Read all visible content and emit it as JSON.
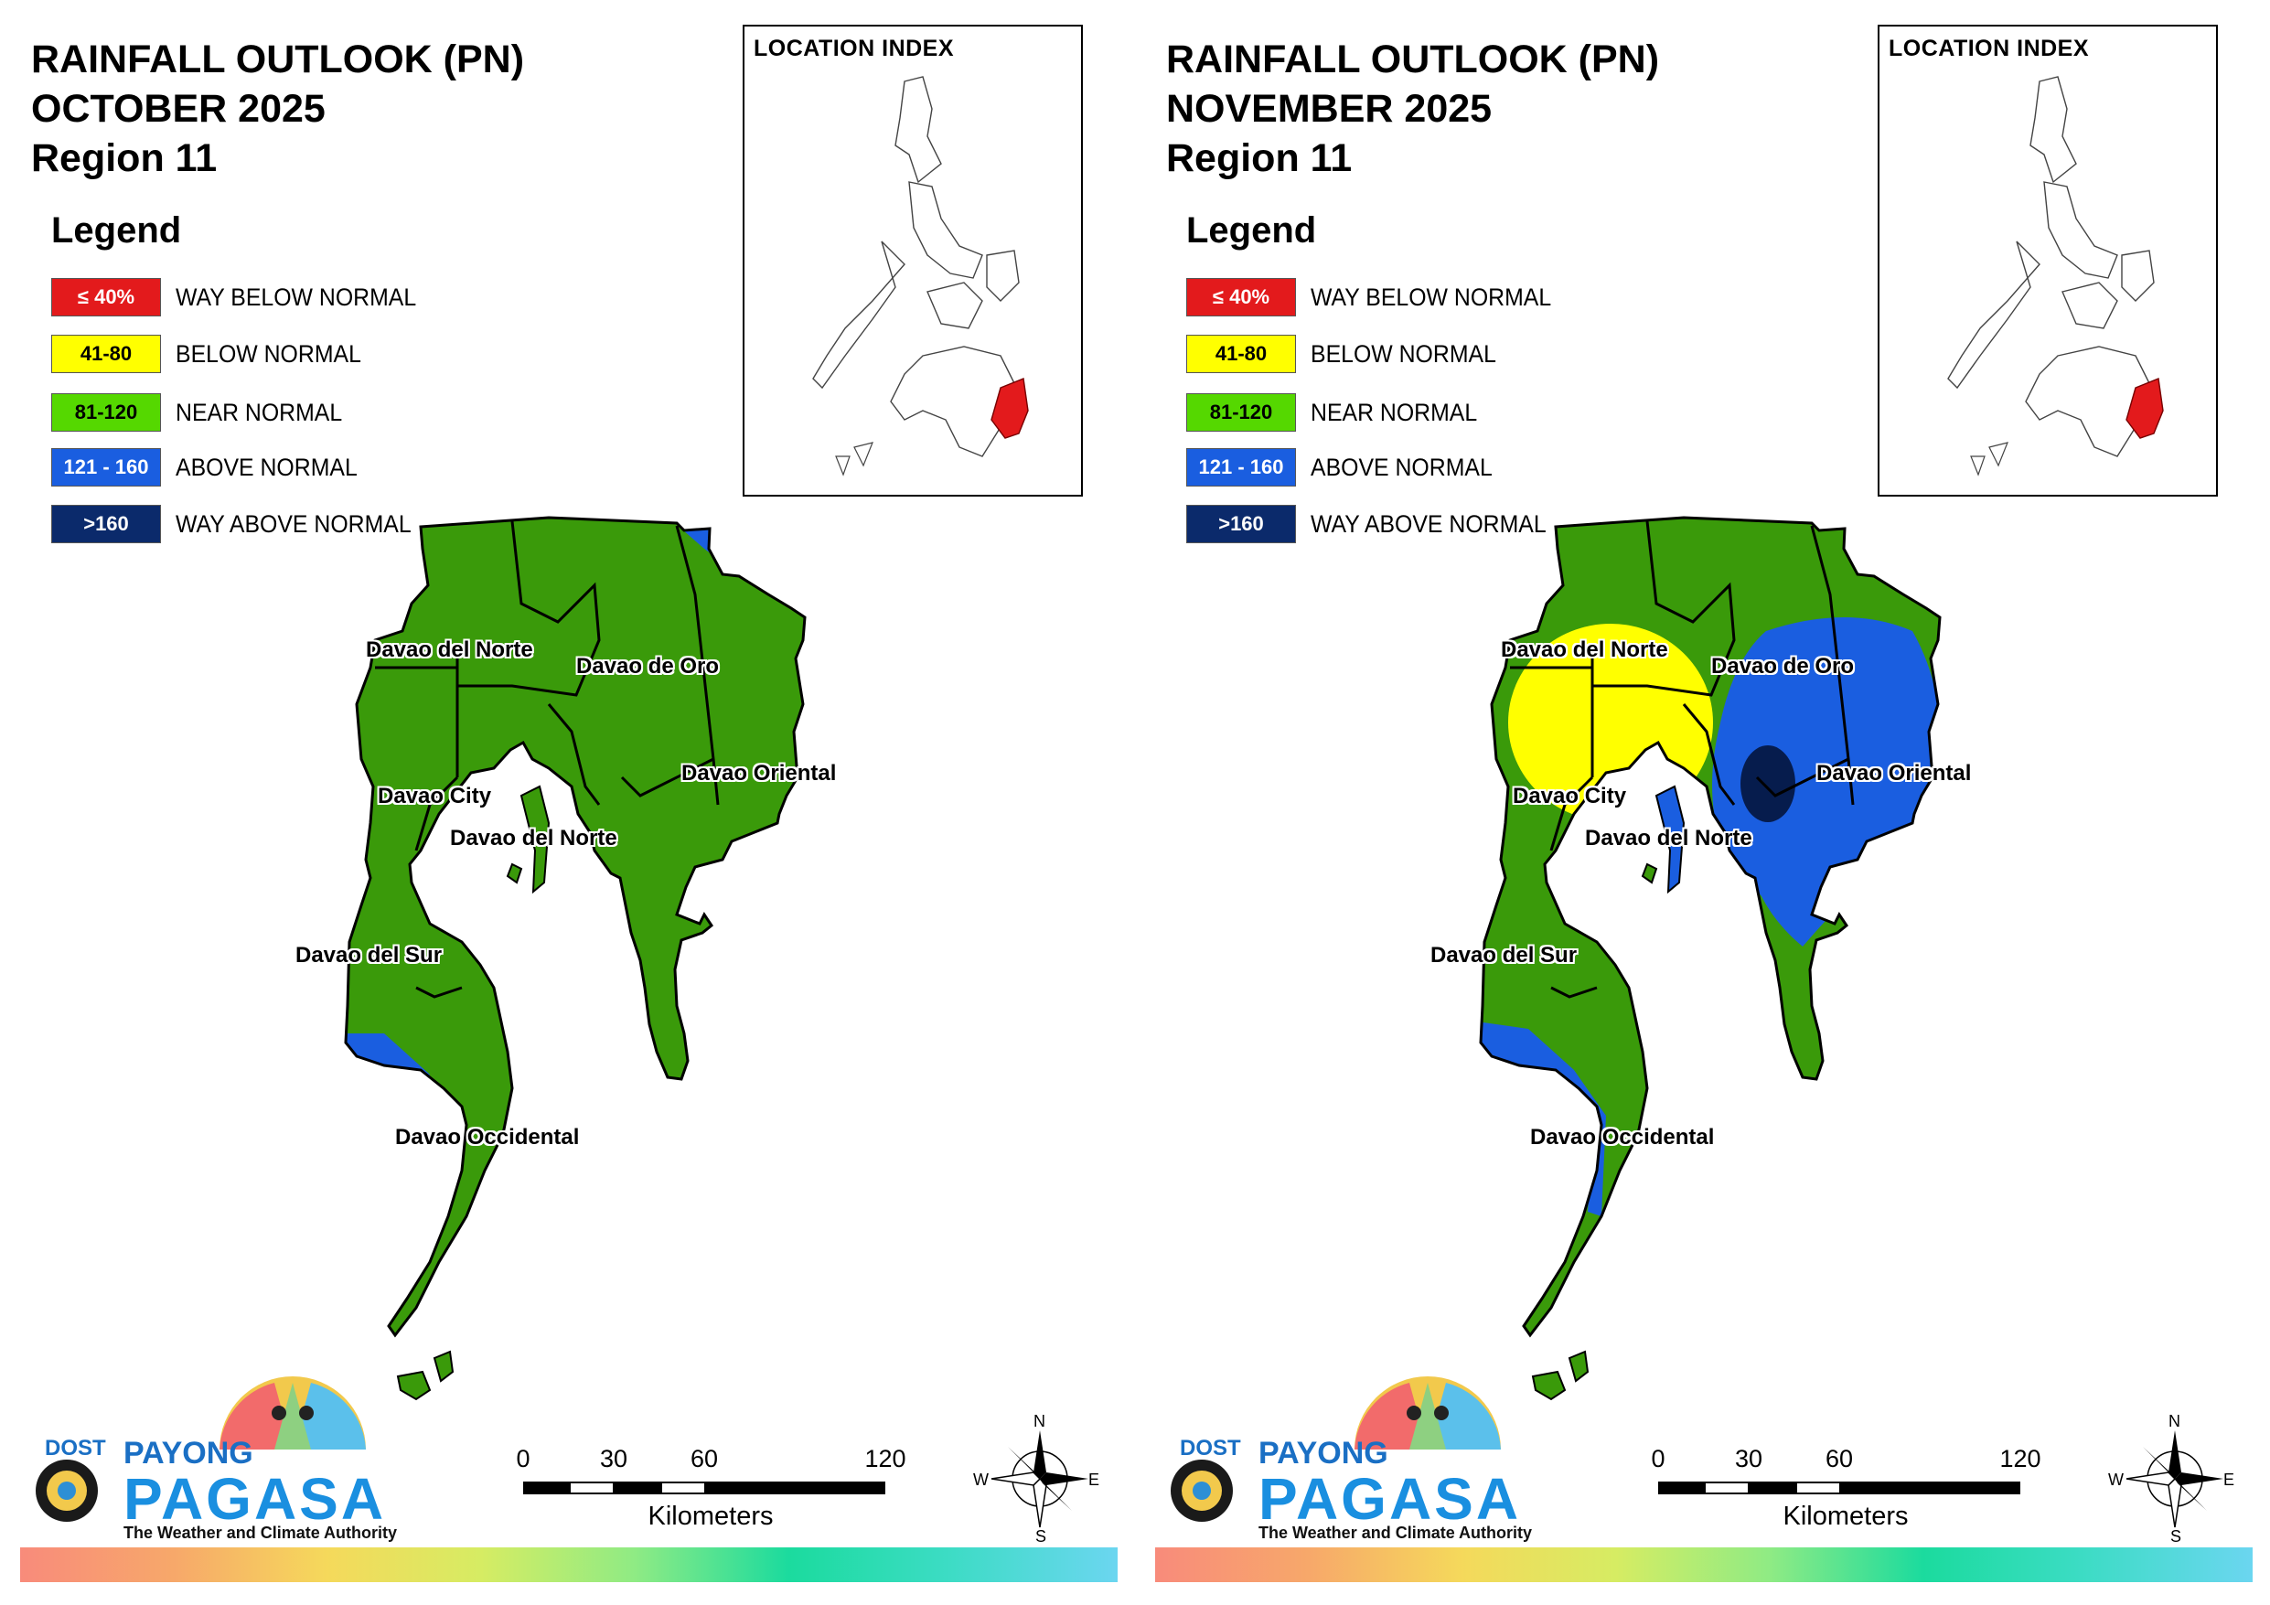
{
  "legend": {
    "title": "Legend",
    "items": [
      {
        "range": "≤ 40%",
        "label": "WAY BELOW NORMAL",
        "color": "#e31a1c",
        "text_color": "#ffffff"
      },
      {
        "range": "41-80",
        "label": "BELOW NORMAL",
        "color": "#ffff00",
        "text_color": "#000000"
      },
      {
        "range": "81-120",
        "label": "NEAR NORMAL",
        "color": "#55d800",
        "text_color": "#000000"
      },
      {
        "range": "121 - 160",
        "label": "ABOVE NORMAL",
        "color": "#1a5ee0",
        "text_color": "#ffffff"
      },
      {
        "range": ">160",
        "label": "WAY ABOVE NORMAL",
        "color": "#0b2a6b",
        "text_color": "#ffffff"
      }
    ]
  },
  "map_colors": {
    "near_normal": "#3a9a0a",
    "above_normal": "#1a5ee0",
    "below_normal": "#ffff00",
    "way_above_normal": "#061c4d",
    "highlight": "#e31a1c"
  },
  "location_index": "LOCATION INDEX",
  "scale_bar": {
    "ticks": [
      "0",
      "30",
      "60",
      "120"
    ],
    "unit": "Kilometers"
  },
  "compass": {
    "n": "N",
    "s": "S",
    "e": "E",
    "w": "W"
  },
  "logo": {
    "dost": "DOST",
    "payong": "PAYONG",
    "pagasa": "PAGASA",
    "tagline": "The Weather and Climate Authority"
  },
  "panels": [
    {
      "title_line1": "RAINFALL OUTLOOK (PN)",
      "title_line2": "OCTOBER 2025",
      "title_line3": "Region 11",
      "places": [
        "Davao del Norte",
        "Davao de Oro",
        "Davao City",
        "Davao del Norte",
        "Davao Oriental",
        "Davao del Sur",
        "Davao Occidental"
      ],
      "zones": [
        "near normal",
        "above normal (northeast corner)",
        "above normal (southwest coast)"
      ]
    },
    {
      "title_line1": "RAINFALL OUTLOOK (PN)",
      "title_line2": "NOVEMBER 2025",
      "title_line3": "Region 11",
      "places": [
        "Davao del Norte",
        "Davao de Oro",
        "Davao City",
        "Davao del Norte",
        "Davao Oriental",
        "Davao del Sur",
        "Davao Occidental"
      ],
      "zones": [
        "near normal",
        "below normal (northwest)",
        "above normal (east)",
        "way above normal (east-central)",
        "above normal (southwest coast)"
      ]
    }
  ]
}
